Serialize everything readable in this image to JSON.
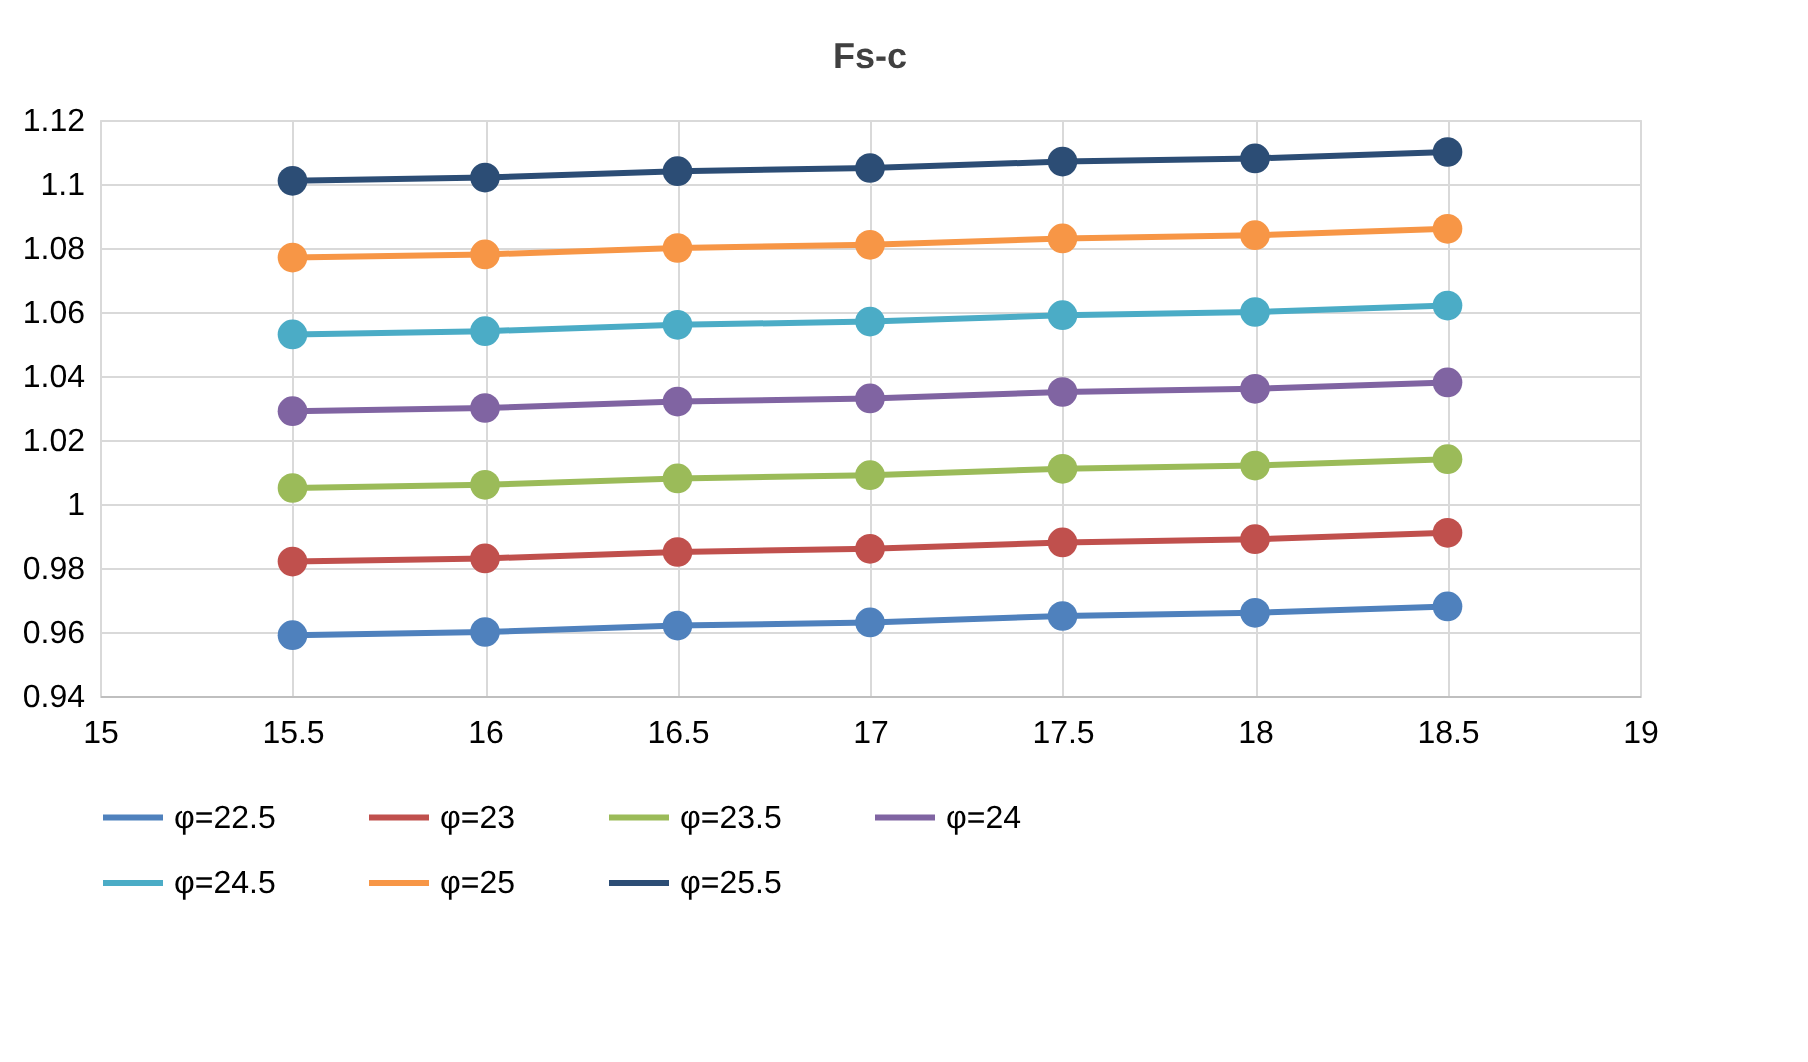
{
  "chart_data": {
    "type": "line",
    "title": "Fs-c",
    "x": [
      15.5,
      16,
      16.5,
      17,
      17.5,
      18,
      18.5
    ],
    "xlim": [
      15,
      19
    ],
    "xticks": [
      15,
      15.5,
      16,
      16.5,
      17,
      17.5,
      18,
      18.5,
      19
    ],
    "ylim": [
      0.94,
      1.12
    ],
    "yticks": [
      0.94,
      0.96,
      0.98,
      1,
      1.02,
      1.04,
      1.06,
      1.08,
      1.1,
      1.12
    ],
    "grid": true,
    "legend": "bottom",
    "marker": "circle",
    "line_style": "solid",
    "series": [
      {
        "name": "φ=22.5",
        "color": "#4f81bd",
        "values": [
          0.959,
          0.96,
          0.962,
          0.963,
          0.965,
          0.966,
          0.968
        ]
      },
      {
        "name": "φ=23",
        "color": "#c0504d",
        "values": [
          0.982,
          0.983,
          0.985,
          0.986,
          0.988,
          0.989,
          0.991
        ]
      },
      {
        "name": "φ=23.5",
        "color": "#9bbb59",
        "values": [
          1.005,
          1.006,
          1.008,
          1.009,
          1.011,
          1.012,
          1.014
        ]
      },
      {
        "name": "φ=24",
        "color": "#8064a2",
        "values": [
          1.029,
          1.03,
          1.032,
          1.033,
          1.035,
          1.036,
          1.038
        ]
      },
      {
        "name": "φ=24.5",
        "color": "#4bacc6",
        "values": [
          1.053,
          1.054,
          1.056,
          1.057,
          1.059,
          1.06,
          1.062
        ]
      },
      {
        "name": "φ=25",
        "color": "#f79646",
        "values": [
          1.077,
          1.078,
          1.08,
          1.081,
          1.083,
          1.084,
          1.086
        ]
      },
      {
        "name": "φ=25.5",
        "color": "#2c4d75",
        "values": [
          1.101,
          1.102,
          1.104,
          1.105,
          1.107,
          1.108,
          1.11
        ]
      }
    ]
  }
}
